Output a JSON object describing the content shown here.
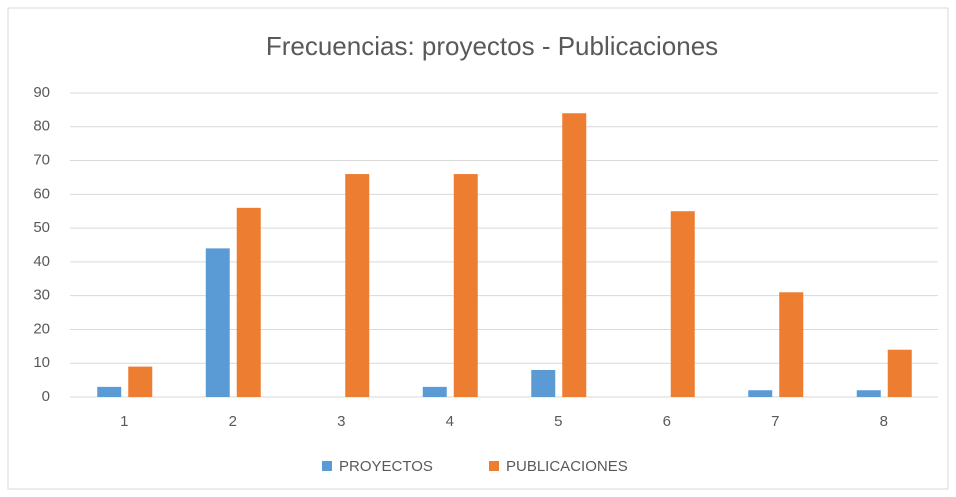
{
  "chart_data": {
    "type": "bar",
    "title": "Frecuencias: proyectos - Publicaciones",
    "categories": [
      "1",
      "2",
      "3",
      "4",
      "5",
      "6",
      "7",
      "8"
    ],
    "series": [
      {
        "name": "PROYECTOS",
        "color": "#5b9bd5",
        "values": [
          3,
          44,
          0,
          3,
          8,
          0,
          2,
          2
        ]
      },
      {
        "name": "PUBLICACIONES",
        "color": "#ed7d31",
        "values": [
          9,
          56,
          66,
          66,
          84,
          55,
          31,
          14
        ]
      }
    ],
    "ylim": [
      0,
      90
    ],
    "yticks": [
      0,
      10,
      20,
      30,
      40,
      50,
      60,
      70,
      80,
      90
    ],
    "grid": true,
    "legend": "bottom"
  }
}
